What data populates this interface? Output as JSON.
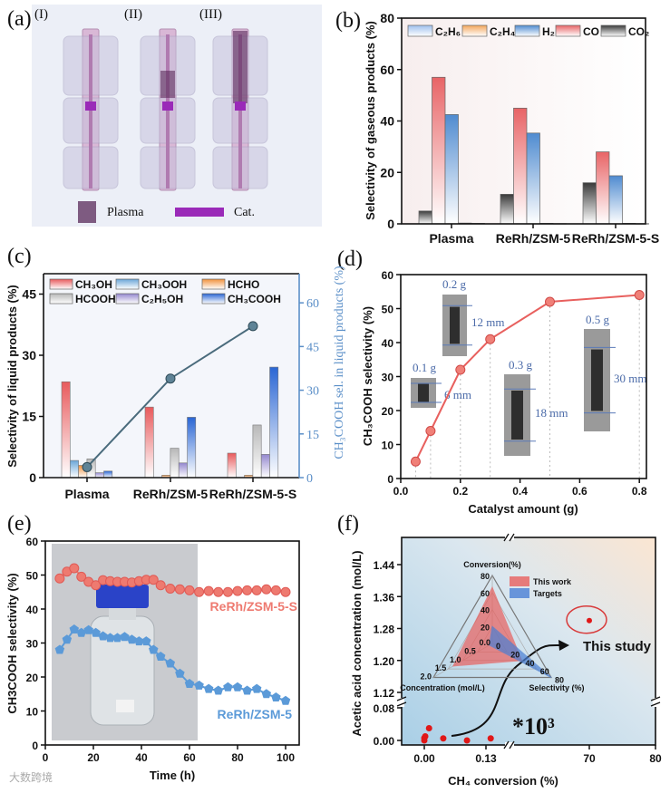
{
  "figure": {
    "panel_labels": [
      "(a)",
      "(b)",
      "(c)",
      "(d)",
      "(e)",
      "(f)"
    ],
    "watermark": "大数跨境"
  },
  "panel_a": {
    "stage_labels": [
      "(I)",
      "(II)",
      "(III)"
    ],
    "legend": [
      "Plasma",
      "Cat."
    ],
    "colors": {
      "plasma": "#5a2a5a",
      "catalyst": "#9a2ab8",
      "tube": "#d9b8d6"
    }
  },
  "chart_data": [
    {
      "type": "bar",
      "title": "",
      "categories": [
        "Plasma",
        "ReRh/ZSM-5",
        "ReRh/ZSM-5-S"
      ],
      "xlabel": "",
      "ylabel": "Selectivity of gaseous products (%)",
      "ylim": [
        0,
        80
      ],
      "yticks": [
        "0",
        "20",
        "40",
        "60",
        "80"
      ],
      "legend_position": "top",
      "series": [
        {
          "name": "C₂H₆",
          "color": "#9fc0ee",
          "values": [
            0.3,
            0.2,
            0.2
          ]
        },
        {
          "name": "C₂H₄",
          "color": "#f3a75c",
          "values": [
            0.2,
            0.1,
            0.1
          ]
        },
        {
          "name": "H₂",
          "color": "#4f8bd0",
          "values": [
            42.5,
            35.3,
            18.7
          ]
        },
        {
          "name": "CO",
          "color": "#e86466",
          "values": [
            57,
            45,
            28
          ]
        },
        {
          "name": "CO₂",
          "color": "#3a3a3a",
          "values": [
            5,
            11.5,
            16
          ]
        }
      ]
    },
    {
      "type": "bar",
      "title": "",
      "categories": [
        "Plasma",
        "ReRh/ZSM-5",
        "ReRh/ZSM-5-S"
      ],
      "ylabel": "Selectivity of liquid products (%)",
      "ylim": [
        0,
        50
      ],
      "yticks": [
        "0",
        "15",
        "30",
        "45"
      ],
      "y2label": "CH₃COOH sel. in liquid products (%)",
      "y2lim": [
        0,
        70
      ],
      "y2ticks": [
        "0",
        "15",
        "30",
        "45",
        "60"
      ],
      "legend_position": "top",
      "series": [
        {
          "name": "CH₃OH",
          "color": "#e85a5c",
          "values": [
            23.5,
            17.3,
            6.0
          ]
        },
        {
          "name": "CH₃OOH",
          "color": "#6aa6d8",
          "values": [
            4.2,
            0,
            0
          ]
        },
        {
          "name": "HCHO",
          "color": "#f0913c",
          "values": [
            3.0,
            0.6,
            0.6
          ]
        },
        {
          "name": "HCOOH",
          "color": "#b8b8b8",
          "values": [
            4.6,
            7.2,
            12.9
          ]
        },
        {
          "name": "C₂H₅OH",
          "color": "#9488cf",
          "values": [
            1.2,
            3.6,
            5.7
          ]
        },
        {
          "name": "CH₃COOH",
          "color": "#2a66d4",
          "values": [
            1.6,
            14.8,
            27.1
          ]
        }
      ],
      "line": {
        "name": "CH₃COOH sel. in liquid products",
        "axis": "right",
        "color": "#4a6b7c",
        "values": [
          3.6,
          34,
          52
        ]
      }
    },
    {
      "type": "line",
      "title": "",
      "xlabel": "Catalyst amount (g)",
      "ylabel": "CH₃COOH selectivity (%)",
      "xlim": [
        0,
        0.82
      ],
      "ylim": [
        0,
        60
      ],
      "xticks": [
        "0.0",
        "0.2",
        "0.4",
        "0.6",
        "0.8"
      ],
      "yticks": [
        "0",
        "10",
        "20",
        "30",
        "40",
        "50",
        "60"
      ],
      "series": [
        {
          "name": "CH₃COOH selectivity",
          "color": "#e8605e",
          "x": [
            0.05,
            0.1,
            0.2,
            0.3,
            0.5,
            0.8
          ],
          "y": [
            5,
            14,
            32,
            41,
            52,
            54
          ]
        }
      ],
      "insets": [
        {
          "mass": "0.1 g",
          "length": "6 mm"
        },
        {
          "mass": "0.2 g",
          "length": "12 mm"
        },
        {
          "mass": "0.3 g",
          "length": "18 mm"
        },
        {
          "mass": "0.5 g",
          "length": "30 mm"
        }
      ]
    },
    {
      "type": "line",
      "title": "",
      "xlabel": "Time (h)",
      "ylabel": "CH3COOH selectivity (%)",
      "xlim": [
        0,
        105
      ],
      "ylim": [
        0,
        60
      ],
      "xticks": [
        "0",
        "20",
        "40",
        "60",
        "80",
        "100"
      ],
      "yticks": [
        "0",
        "10",
        "20",
        "30",
        "40",
        "50",
        "60"
      ],
      "x": [
        6,
        9,
        12,
        15,
        18,
        21,
        24,
        27,
        30,
        33,
        36,
        39,
        42,
        45,
        48,
        52,
        56,
        60,
        64,
        68,
        72,
        76,
        80,
        84,
        88,
        92,
        96,
        100
      ],
      "series": [
        {
          "name": "ReRh/ZSM-5-S",
          "color": "#ee7a70",
          "values": [
            49,
            51,
            52,
            49.5,
            48,
            47,
            48.5,
            48.2,
            48,
            48,
            47.8,
            48.2,
            48.6,
            48.6,
            47,
            46,
            45.8,
            45.5,
            45,
            45.3,
            45,
            45,
            45.3,
            45.5,
            45.5,
            45.8,
            45.5,
            45
          ]
        },
        {
          "name": "ReRh/ZSM-5",
          "color": "#5b9ad8",
          "values": [
            28,
            31,
            34,
            33,
            33.8,
            33,
            32,
            31.5,
            31.5,
            31.8,
            31,
            30.5,
            30.5,
            28,
            26,
            24,
            21,
            18,
            17.5,
            16.5,
            16,
            17,
            17,
            16,
            16.5,
            15,
            14,
            13
          ]
        }
      ]
    },
    {
      "type": "scatter",
      "title": "",
      "xlabel": "CH₄ conversion (%)",
      "ylabel": "Acetic acid concentration (mol/L)",
      "xticks": [
        "0.00",
        "0.13",
        "70",
        "80"
      ],
      "yticks_lower": [
        "0.00",
        "0.08"
      ],
      "yticks_upper": [
        "1.12",
        "1.20",
        "1.28",
        "1.36",
        "1.44"
      ],
      "axis_break": true,
      "points_literature": [
        {
          "x": 0.0,
          "y": 0.0
        },
        {
          "x": 0.0,
          "y": 0.006
        },
        {
          "x": 0.002,
          "y": 0.01
        },
        {
          "x": 0.01,
          "y": 0.03
        },
        {
          "x": 0.04,
          "y": 0.005
        },
        {
          "x": 0.09,
          "y": 0.0
        },
        {
          "x": 0.14,
          "y": 0.005
        }
      ],
      "point_this_study": {
        "x": 70,
        "y": 1.3
      },
      "annotation": "This study",
      "scale_note": "*10³",
      "radar": {
        "axes": [
          "Conversion(%)",
          "Selectivity (%)",
          "Concentration (mol/L)"
        ],
        "ticks_conversion": [
          "20",
          "40",
          "60",
          "80"
        ],
        "ticks_selectivity": [
          "0",
          "20",
          "40",
          "60",
          "80"
        ],
        "ticks_concentration": [
          "0.0",
          "0.5",
          "1.0",
          "1.5",
          "2.0"
        ],
        "max": [
          80,
          80,
          2.0
        ],
        "series": [
          {
            "name": "This work",
            "color": "#e8605e",
            "values": [
              66,
              40,
              1.33
            ]
          },
          {
            "name": "Targets",
            "color": "#4a7fd4",
            "values": [
              20,
              80,
              0.1
            ]
          }
        ]
      }
    }
  ]
}
